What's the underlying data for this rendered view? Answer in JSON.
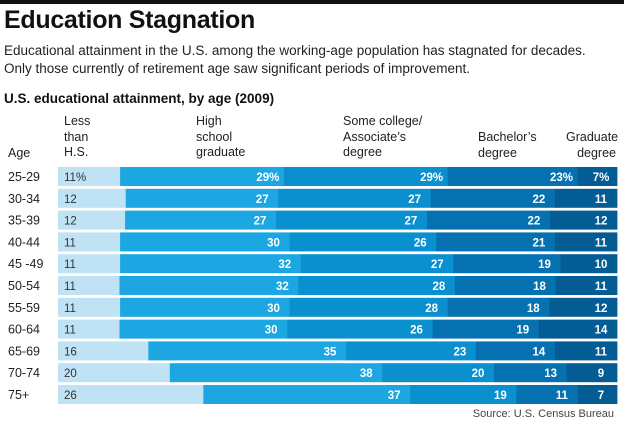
{
  "title": "Education Stagnation",
  "description": "Educational attainment in the U.S. among the working-age population has stagnated for decades. Only those currently of retirement age saw significant periods of improvement.",
  "source": "Source: U.S. Census Bureau",
  "headers": {
    "age": "Age",
    "lt_hs": [
      "Less",
      "than",
      "H.S."
    ],
    "hs": [
      "High",
      "school",
      "graduate"
    ],
    "some_college": [
      "Some college/",
      "Associate’s",
      "degree"
    ],
    "bachelor": [
      "Bachelor’s",
      "degree"
    ],
    "graduate": [
      "Graduate",
      "degree"
    ]
  },
  "colors": [
    "#bfe3f5",
    "#1ca7e2",
    "#0a8fcf",
    "#0671b0",
    "#045c94"
  ],
  "chart_data": {
    "type": "bar",
    "stacked": true,
    "orientation": "horizontal",
    "title": "U.S. educational attainment, by age (2009)",
    "categories": [
      "25-29",
      "30-34",
      "35-39",
      "40-44",
      "45 -49",
      "50-54",
      "55-59",
      "60-64",
      "65-69",
      "70-74",
      "75+"
    ],
    "series": [
      {
        "name": "Less than H.S.",
        "values": [
          11,
          12,
          12,
          11,
          11,
          11,
          11,
          11,
          16,
          20,
          26
        ],
        "labels": [
          "11%",
          "12",
          "12",
          "11",
          "11",
          "11",
          "11",
          "11",
          "16",
          "20",
          "26"
        ]
      },
      {
        "name": "High school graduate",
        "values": [
          29,
          27,
          27,
          30,
          32,
          32,
          30,
          30,
          35,
          38,
          37
        ],
        "labels": [
          "29%",
          "27",
          "27",
          "30",
          "32",
          "32",
          "30",
          "30",
          "35",
          "38",
          "37"
        ]
      },
      {
        "name": "Some college/ Associate’s degree",
        "values": [
          29,
          27,
          27,
          26,
          27,
          28,
          28,
          26,
          23,
          20,
          19
        ],
        "labels": [
          "29%",
          "27",
          "27",
          "26",
          "27",
          "28",
          "28",
          "26",
          "23",
          "20",
          "19"
        ]
      },
      {
        "name": "Bachelor’s degree",
        "values": [
          23,
          22,
          22,
          21,
          19,
          18,
          18,
          19,
          14,
          13,
          11
        ],
        "labels": [
          "23%",
          "22",
          "22",
          "21",
          "19",
          "18",
          "18",
          "19",
          "14",
          "13",
          "11"
        ]
      },
      {
        "name": "Graduate degree",
        "values": [
          7,
          11,
          12,
          11,
          10,
          11,
          12,
          14,
          11,
          9,
          7
        ],
        "labels": [
          "7%",
          "11",
          "12",
          "11",
          "10",
          "11",
          "12",
          "14",
          "11",
          "9",
          "7"
        ]
      }
    ]
  }
}
